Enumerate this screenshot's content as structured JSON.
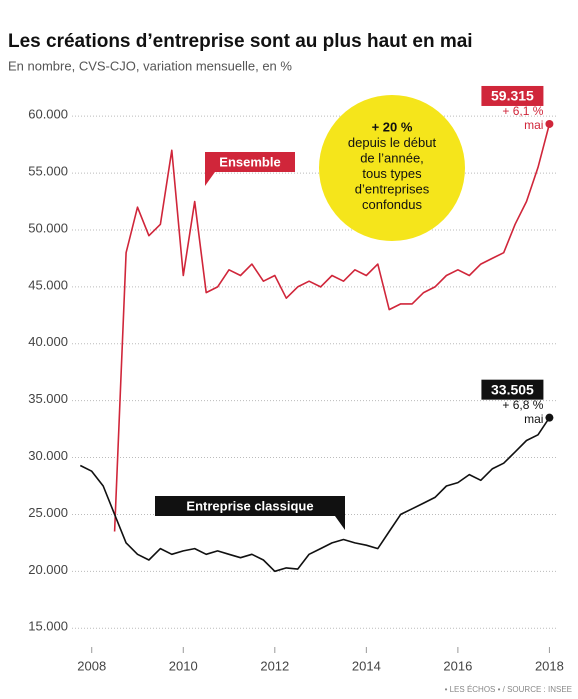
{
  "chart_data": {
    "type": "line",
    "title": "Les créations d’entreprise sont au plus haut en mai",
    "subtitle": "En nombre, CVS-CJO, variation mensuelle, en %",
    "source": "• LES ÉCHOS • / SOURCE : INSEE",
    "x": [
      2007.75,
      2008.0,
      2008.25,
      2008.5,
      2008.75,
      2009.0,
      2009.25,
      2009.5,
      2009.75,
      2010.0,
      2010.25,
      2010.5,
      2010.75,
      2011.0,
      2011.25,
      2011.5,
      2011.75,
      2012.0,
      2012.25,
      2012.5,
      2012.75,
      2013.0,
      2013.25,
      2013.5,
      2013.75,
      2014.0,
      2014.25,
      2014.5,
      2014.75,
      2015.0,
      2015.25,
      2015.5,
      2015.75,
      2016.0,
      2016.25,
      2016.5,
      2016.75,
      2017.0,
      2017.25,
      2017.5,
      2017.75,
      2018.0
    ],
    "series": [
      {
        "name": "Ensemble",
        "color": "#d0263a",
        "values": [
          null,
          null,
          null,
          23500,
          48000,
          52000,
          49500,
          50500,
          57000,
          46000,
          52500,
          44500,
          45000,
          46500,
          46000,
          47000,
          45500,
          46000,
          44000,
          45000,
          45500,
          45000,
          46000,
          45500,
          46500,
          46000,
          47000,
          43000,
          43500,
          43500,
          44500,
          45000,
          46000,
          46500,
          46000,
          47000,
          47500,
          48000,
          50500,
          52500,
          55500,
          59315
        ],
        "value_labels": [
          null,
          null,
          null,
          null,
          null,
          null,
          null,
          null,
          null,
          null,
          null,
          null,
          null,
          null,
          null,
          null,
          null,
          null,
          null,
          null,
          null,
          null,
          null,
          null,
          null,
          null,
          null,
          null,
          null,
          null,
          null,
          null,
          null,
          null,
          null,
          null,
          null,
          null,
          null,
          null,
          null,
          "59.315"
        ],
        "annotation": [
          "+ 6,1 %",
          "mai"
        ]
      },
      {
        "name": "Entreprise classique",
        "color": "#111111",
        "values": [
          29300,
          28800,
          27500,
          25000,
          22500,
          21500,
          21000,
          22000,
          21500,
          21800,
          22000,
          21500,
          21800,
          21500,
          21200,
          21500,
          21000,
          20000,
          20300,
          20200,
          21500,
          22000,
          22500,
          22800,
          22500,
          22300,
          22000,
          23500,
          25000,
          25500,
          26000,
          26500,
          27500,
          27800,
          28500,
          28000,
          29000,
          29500,
          30500,
          31500,
          32000,
          33505
        ],
        "value_labels": [
          null,
          null,
          null,
          null,
          null,
          null,
          null,
          null,
          null,
          null,
          null,
          null,
          null,
          null,
          null,
          null,
          null,
          null,
          null,
          null,
          null,
          null,
          null,
          null,
          null,
          null,
          null,
          null,
          null,
          null,
          null,
          null,
          null,
          null,
          null,
          null,
          null,
          null,
          null,
          null,
          null,
          "33.505"
        ],
        "annotation": [
          "+ 6,8 %",
          "mai"
        ]
      }
    ],
    "callout": [
      "+ 20 %",
      "depuis le début",
      "de l’année,",
      "tous types",
      "d’entreprises",
      "confondus"
    ],
    "xlim": [
      2007.7,
      2018.1
    ],
    "xticks": [
      2008,
      2010,
      2012,
      2014,
      2016,
      2018
    ],
    "ylim": [
      13000,
      62300
    ],
    "yticks": [
      {
        "value": 15000,
        "label": "15.000"
      },
      {
        "value": 20000,
        "label": "20.000"
      },
      {
        "value": 25000,
        "label": "25.000"
      },
      {
        "value": 30000,
        "label": "30.000"
      },
      {
        "value": 35000,
        "label": "35.000"
      },
      {
        "value": 40000,
        "label": "40.000"
      },
      {
        "value": 45000,
        "label": "45.000"
      },
      {
        "value": 50000,
        "label": "50.000"
      },
      {
        "value": 55000,
        "label": "55.000"
      },
      {
        "value": 60000,
        "label": "60.000"
      }
    ],
    "grid": true
  }
}
